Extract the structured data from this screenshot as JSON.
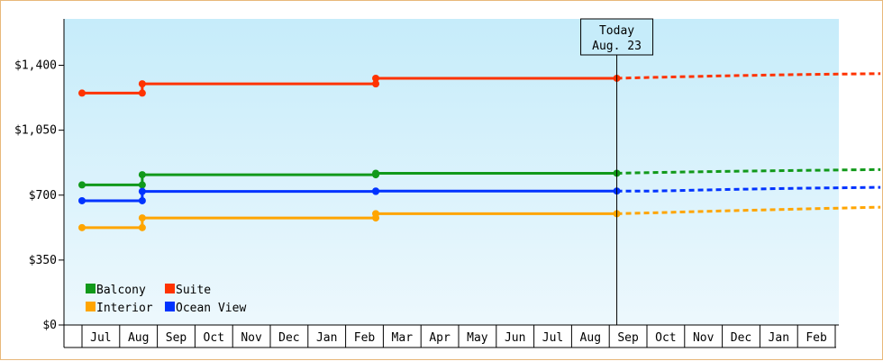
{
  "chart_data": {
    "type": "line",
    "step": true,
    "yticks": [
      "$0",
      "$350",
      "$700",
      "$1,050",
      "$1,400"
    ],
    "ylim": [
      0,
      1650
    ],
    "x_labels": [
      "Jul",
      "Aug",
      "Sep",
      "Oct",
      "Nov",
      "Dec",
      "Jan",
      "Feb",
      "Mar",
      "Apr",
      "May",
      "Jun",
      "Jul",
      "Aug",
      "Sep",
      "Oct",
      "Nov",
      "Dec",
      "Jan",
      "Feb"
    ],
    "today": {
      "line1": "Today",
      "line2": "Aug. 23",
      "x": 14.2
    },
    "grid": "vertical lines at month boundaries",
    "legend_position": "bottom-left",
    "series": [
      {
        "name": "Balcony",
        "color": "#11991a",
        "points": [
          [
            0,
            755
          ],
          [
            1.6,
            755
          ],
          [
            1.6,
            810
          ],
          [
            7.8,
            810
          ],
          [
            7.8,
            818
          ],
          [
            14.2,
            818
          ]
        ],
        "forecast": [
          [
            14.2,
            818
          ],
          [
            15.2,
            822
          ],
          [
            17,
            828
          ],
          [
            19,
            833
          ],
          [
            21.2,
            838
          ]
        ]
      },
      {
        "name": "Suite",
        "color": "#ff3300",
        "points": [
          [
            0,
            1250
          ],
          [
            1.6,
            1250
          ],
          [
            1.6,
            1300
          ],
          [
            7.8,
            1300
          ],
          [
            7.8,
            1330
          ],
          [
            14.2,
            1330
          ]
        ],
        "forecast": [
          [
            14.2,
            1330
          ],
          [
            15.2,
            1335
          ],
          [
            17,
            1343
          ],
          [
            19,
            1350
          ],
          [
            21.2,
            1355
          ]
        ]
      },
      {
        "name": "Interior",
        "color": "#ffa500",
        "points": [
          [
            0,
            525
          ],
          [
            1.6,
            525
          ],
          [
            1.6,
            577
          ],
          [
            7.8,
            577
          ],
          [
            7.8,
            600
          ],
          [
            14.2,
            600
          ]
        ],
        "forecast": [
          [
            14.2,
            600
          ],
          [
            15.2,
            605
          ],
          [
            17,
            615
          ],
          [
            19,
            625
          ],
          [
            21.2,
            635
          ]
        ]
      },
      {
        "name": "Ocean View",
        "color": "#0033ff",
        "points": [
          [
            0,
            670
          ],
          [
            1.6,
            670
          ],
          [
            1.6,
            720
          ],
          [
            7.8,
            720
          ],
          [
            7.8,
            722
          ],
          [
            14.2,
            722
          ]
        ],
        "forecast": [
          [
            14.2,
            722
          ],
          [
            15.2,
            722
          ],
          [
            17,
            730
          ],
          [
            19,
            737
          ],
          [
            21.2,
            742
          ]
        ]
      }
    ]
  }
}
